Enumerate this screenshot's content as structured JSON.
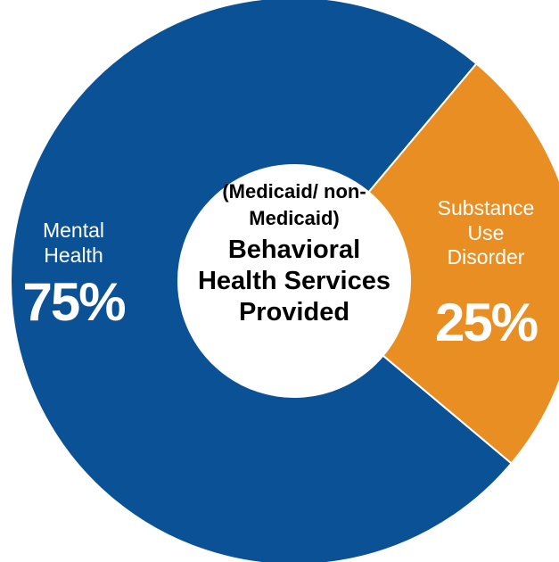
{
  "chart_data": {
    "type": "donut",
    "title": "Behavioral Health Services Provided",
    "subtitle": "(Medicaid/ non-Medicaid)",
    "categories": [
      "Mental Health",
      "Substance Use Disorder"
    ],
    "values": [
      75,
      25
    ],
    "value_labels": [
      "75%",
      "25%"
    ],
    "colors": [
      "#0b5195",
      "#e98e22"
    ]
  }
}
